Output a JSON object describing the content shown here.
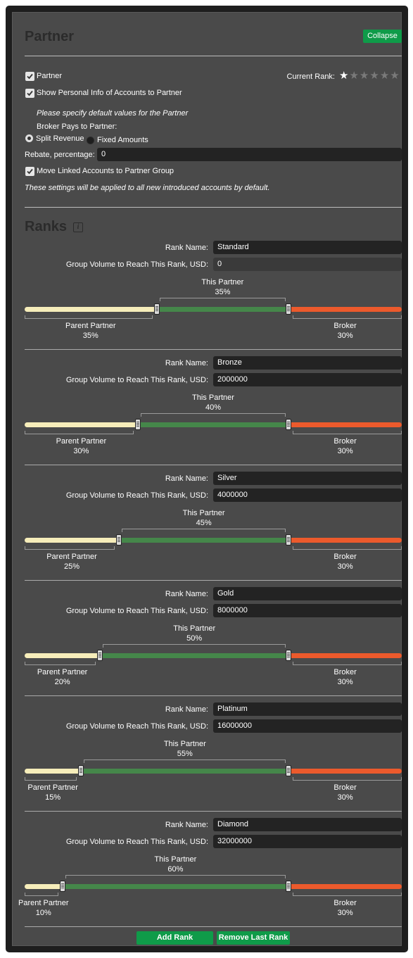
{
  "partner": {
    "title": "Partner",
    "collapse_label": "Collapse",
    "partner_checkbox_label": "Partner",
    "current_rank_label": "Current Rank:",
    "current_rank_stars": 1,
    "total_stars": 6,
    "show_personal_label": "Show Personal Info of Accounts to Partner",
    "default_values_note": "Please specify default values for the Partner",
    "broker_pays_label": "Broker Pays to Partner:",
    "split_revenue_label": "Split Revenue",
    "fixed_amounts_label": "Fixed Amounts",
    "selected_payment": "Split Revenue",
    "rebate_label": "Rebate, percentage:",
    "rebate_value": "0",
    "move_linked_label": "Move Linked Accounts to Partner Group",
    "applied_note": "These settings will be applied to all new introduced accounts by default."
  },
  "ranks_section": {
    "title": "Ranks",
    "rank_name_label": "Rank Name:",
    "group_volume_label": "Group Volume to Reach This Rank, USD:",
    "this_partner_label": "This Partner",
    "parent_partner_label": "Parent Partner",
    "broker_label": "Broker",
    "add_rank_label": "Add Rank",
    "remove_last_rank_label": "Remove Last Rank"
  },
  "ranks": [
    {
      "name": "Standard",
      "volume": "0",
      "parent_pct": 35,
      "partner_pct": 35,
      "broker_pct": 30,
      "parent_text": "35%",
      "partner_text": "35%",
      "broker_text": "30%"
    },
    {
      "name": "Bronze",
      "volume": "2000000",
      "parent_pct": 30,
      "partner_pct": 40,
      "broker_pct": 30,
      "parent_text": "30%",
      "partner_text": "40%",
      "broker_text": "30%"
    },
    {
      "name": "Silver",
      "volume": "4000000",
      "parent_pct": 25,
      "partner_pct": 45,
      "broker_pct": 30,
      "parent_text": "25%",
      "partner_text": "45%",
      "broker_text": "30%"
    },
    {
      "name": "Gold",
      "volume": "8000000",
      "parent_pct": 20,
      "partner_pct": 50,
      "broker_pct": 30,
      "parent_text": "20%",
      "partner_text": "50%",
      "broker_text": "30%"
    },
    {
      "name": "Platinum",
      "volume": "16000000",
      "parent_pct": 15,
      "partner_pct": 55,
      "broker_pct": 30,
      "parent_text": "15%",
      "partner_text": "55%",
      "broker_text": "30%"
    },
    {
      "name": "Diamond",
      "volume": "32000000",
      "parent_pct": 10,
      "partner_pct": 60,
      "broker_pct": 30,
      "parent_text": "10%",
      "partner_text": "60%",
      "broker_text": "30%"
    }
  ],
  "colors": {
    "parent_segment": "#f6edba",
    "partner_segment": "#45874a",
    "broker_segment": "#ec5a2c",
    "button_green": "#0f9b49"
  }
}
